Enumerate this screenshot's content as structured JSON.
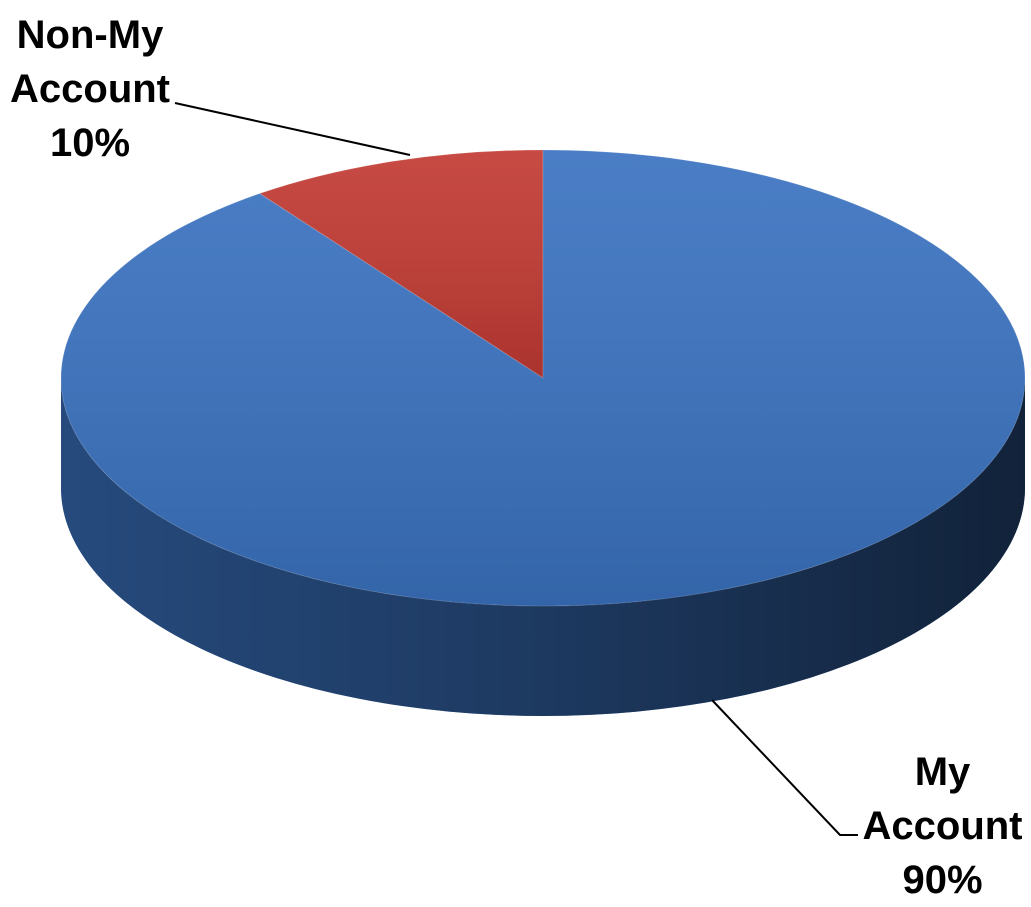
{
  "chart_data": {
    "type": "pie",
    "categories": [
      "Non-My Account",
      "My Account"
    ],
    "values": [
      10,
      90
    ],
    "value_labels": [
      "10%",
      "90%"
    ],
    "colors": [
      "#c23a33",
      "#3a72c0"
    ]
  }
}
